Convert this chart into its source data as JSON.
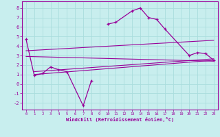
{
  "title": "",
  "xlabel": "Windchill (Refroidissement éolien,°C)",
  "ylabel": "",
  "bg_color": "#c8eeee",
  "line_color": "#990099",
  "grid_color": "#aadddd",
  "xlim": [
    -0.5,
    23.5
  ],
  "ylim": [
    -2.7,
    8.7
  ],
  "xticks": [
    0,
    1,
    2,
    3,
    4,
    5,
    6,
    7,
    8,
    9,
    10,
    11,
    12,
    13,
    14,
    15,
    16,
    17,
    18,
    19,
    20,
    21,
    22,
    23
  ],
  "yticks": [
    -2,
    -1,
    0,
    1,
    2,
    3,
    4,
    5,
    6,
    7,
    8
  ],
  "curve1_x": [
    0,
    1,
    2,
    3,
    4,
    5,
    7,
    8,
    9,
    10,
    11,
    13,
    14,
    15,
    16,
    17,
    20,
    21,
    22,
    23
  ],
  "curve1_y": [
    4.7,
    0.9,
    1.1,
    1.8,
    1.5,
    1.3,
    -2.3,
    0.35,
    null,
    6.3,
    6.5,
    7.7,
    8.0,
    7.0,
    6.8,
    5.8,
    3.0,
    3.3,
    3.2,
    2.5
  ],
  "line1_x": [
    0,
    23
  ],
  "line1_y": [
    2.9,
    2.4
  ],
  "line2_x": [
    0,
    23
  ],
  "line2_y": [
    3.5,
    4.6
  ],
  "line3_x": [
    1,
    23
  ],
  "line3_y": [
    1.0,
    2.5
  ],
  "line4_x": [
    1,
    23
  ],
  "line4_y": [
    1.3,
    2.65
  ]
}
